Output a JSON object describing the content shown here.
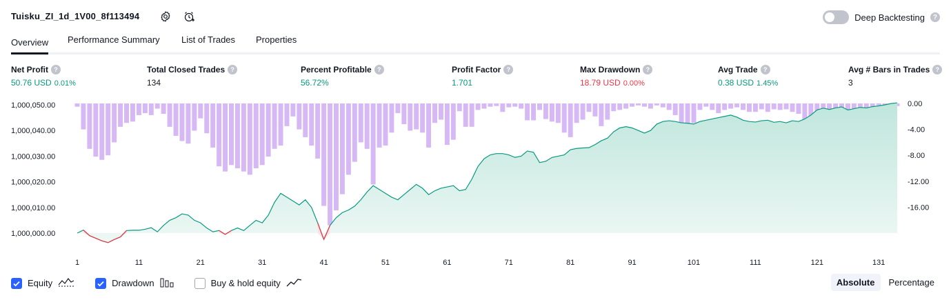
{
  "header": {
    "strategy_name": "Tuisku_ZI_1d_1V00_8f113494",
    "settings_icon": "gear-icon",
    "alert_icon": "alarm-clock-add-icon",
    "deep_backtesting_label": "Deep Backtesting",
    "deep_backtesting_on": false,
    "help_glyph": "?"
  },
  "tabs": [
    {
      "label": "Overview",
      "active": true
    },
    {
      "label": "Performance Summary",
      "active": false
    },
    {
      "label": "List of Trades",
      "active": false
    },
    {
      "label": "Properties",
      "active": false
    }
  ],
  "metrics": [
    {
      "label": "Net Profit",
      "value": "50.76 USD",
      "sub": "0.01%",
      "color": "#089981"
    },
    {
      "label": "Total Closed Trades",
      "value": "134",
      "sub": "",
      "color": "#131722"
    },
    {
      "label": "Percent Profitable",
      "value": "56.72%",
      "sub": "",
      "color": "#089981"
    },
    {
      "label": "Profit Factor",
      "value": "1.701",
      "sub": "",
      "color": "#089981"
    },
    {
      "label": "Max Drawdown",
      "value": "18.79 USD",
      "sub": "0.00%",
      "color": "#f23645"
    },
    {
      "label": "Avg Trade",
      "value": "0.38 USD",
      "sub": "1.45%",
      "color": "#089981"
    },
    {
      "label": "Avg # Bars in Trades",
      "value": "3",
      "sub": "",
      "color": "#131722"
    }
  ],
  "chart_data": {
    "type": "area",
    "x_ticks": [
      1,
      11,
      21,
      31,
      41,
      51,
      61,
      71,
      81,
      91,
      101,
      111,
      121,
      131
    ],
    "x_range": [
      1,
      134
    ],
    "left_axis": {
      "ticks": [
        "1,000,000.00",
        "1,000,010.00",
        "1,000,020.00",
        "1,000,030.00",
        "1,000,040.00",
        "1,000,050.00"
      ],
      "range": [
        1000000,
        1000050
      ]
    },
    "right_axis": {
      "ticks": [
        "0.00",
        "-4.00",
        "-8.00",
        "-12.00",
        "-16.00"
      ],
      "range": [
        -18.79,
        0
      ]
    },
    "series": [
      {
        "name": "Equity",
        "axis": "left",
        "points": [
          [
            1,
            1000000.0
          ],
          [
            2,
            1000001.2
          ],
          [
            3,
            999999.0
          ],
          [
            4,
            999998.0
          ],
          [
            5,
            999997.0
          ],
          [
            6,
            999996.3
          ],
          [
            7,
            999997.5
          ],
          [
            8,
            999998.5
          ],
          [
            9,
            1000001.0
          ],
          [
            10,
            1000001.1
          ],
          [
            11,
            1000001.1
          ],
          [
            12,
            1000001.5
          ],
          [
            13,
            1000002.1
          ],
          [
            14,
            1000000.5
          ],
          [
            15,
            1000003.0
          ],
          [
            16,
            1000005.0
          ],
          [
            17,
            1000006.0
          ],
          [
            18,
            1000007.5
          ],
          [
            19,
            1000007.0
          ],
          [
            20,
            1000005.0
          ],
          [
            21,
            1000004.0
          ],
          [
            22,
            1000002.0
          ],
          [
            23,
            1000000.5
          ],
          [
            24,
            1000001.0
          ],
          [
            25,
            999999.5
          ],
          [
            26,
            1000001.0
          ],
          [
            27,
            1000002.0
          ],
          [
            28,
            1000001.0
          ],
          [
            29,
            1000003.0
          ],
          [
            30,
            1000005.0
          ],
          [
            31,
            1000004.0
          ],
          [
            32,
            1000007.0
          ],
          [
            33,
            1000012.0
          ],
          [
            34,
            1000015.5
          ],
          [
            35,
            1000014.0
          ],
          [
            36,
            1000012.5
          ],
          [
            37,
            1000011.0
          ],
          [
            38,
            1000013.0
          ],
          [
            39,
            1000010.0
          ],
          [
            40,
            1000004.0
          ],
          [
            41,
            999997.5
          ],
          [
            42,
            1000003.0
          ],
          [
            43,
            1000006.0
          ],
          [
            44,
            1000008.0
          ],
          [
            45,
            1000009.0
          ],
          [
            46,
            1000010.5
          ],
          [
            47,
            1000013.0
          ],
          [
            48,
            1000016.0
          ],
          [
            49,
            1000018.5
          ],
          [
            50,
            1000017.0
          ],
          [
            51,
            1000015.5
          ],
          [
            52,
            1000014.0
          ],
          [
            53,
            1000013.0
          ],
          [
            54,
            1000015.0
          ],
          [
            55,
            1000017.0
          ],
          [
            56,
            1000019.0
          ],
          [
            57,
            1000017.5
          ],
          [
            58,
            1000015.0
          ],
          [
            59,
            1000016.5
          ],
          [
            60,
            1000017.5
          ],
          [
            61,
            1000018.0
          ],
          [
            62,
            1000018.5
          ],
          [
            63,
            1000016.5
          ],
          [
            64,
            1000017.0
          ],
          [
            65,
            1000021.0
          ],
          [
            66,
            1000026.0
          ],
          [
            67,
            1000029.0
          ],
          [
            68,
            1000030.5
          ],
          [
            69,
            1000031.0
          ],
          [
            70,
            1000031.0
          ],
          [
            71,
            1000030.5
          ],
          [
            72,
            1000029.5
          ],
          [
            73,
            1000030.0
          ],
          [
            74,
            1000032.0
          ],
          [
            75,
            1000031.5
          ],
          [
            76,
            1000027.5
          ],
          [
            77,
            1000028.0
          ],
          [
            78,
            1000029.5
          ],
          [
            79,
            1000030.0
          ],
          [
            80,
            1000030.5
          ],
          [
            81,
            1000032.5
          ],
          [
            82,
            1000033.0
          ],
          [
            83,
            1000033.2
          ],
          [
            84,
            1000033.3
          ],
          [
            85,
            1000034.5
          ],
          [
            86,
            1000036.0
          ],
          [
            87,
            1000037.0
          ],
          [
            88,
            1000039.5
          ],
          [
            89,
            1000041.0
          ],
          [
            90,
            1000041.5
          ],
          [
            91,
            1000041.0
          ],
          [
            92,
            1000040.0
          ],
          [
            93,
            1000039.0
          ],
          [
            94,
            1000040.0
          ],
          [
            95,
            1000042.5
          ],
          [
            96,
            1000043.5
          ],
          [
            97,
            1000043.8
          ],
          [
            98,
            1000043.5
          ],
          [
            99,
            1000043.0
          ],
          [
            100,
            1000042.8
          ],
          [
            101,
            1000042.5
          ],
          [
            102,
            1000043.5
          ],
          [
            103,
            1000044.0
          ],
          [
            104,
            1000044.5
          ],
          [
            105,
            1000045.0
          ],
          [
            106,
            1000045.5
          ],
          [
            107,
            1000046.0
          ],
          [
            108,
            1000045.2
          ],
          [
            109,
            1000044.0
          ],
          [
            110,
            1000043.5
          ],
          [
            111,
            1000043.3
          ],
          [
            112,
            1000043.8
          ],
          [
            113,
            1000044.0
          ],
          [
            114,
            1000043.2
          ],
          [
            115,
            1000043.5
          ],
          [
            116,
            1000043.0
          ],
          [
            117,
            1000043.8
          ],
          [
            118,
            1000043.5
          ],
          [
            119,
            1000044.5
          ],
          [
            120,
            1000046.0
          ],
          [
            121,
            1000048.0
          ],
          [
            122,
            1000048.7
          ],
          [
            123,
            1000048.2
          ],
          [
            124,
            1000048.8
          ],
          [
            125,
            1000049.2
          ],
          [
            126,
            1000048.0
          ],
          [
            127,
            1000048.5
          ],
          [
            128,
            1000049.0
          ],
          [
            129,
            1000048.8
          ],
          [
            130,
            1000049.3
          ],
          [
            131,
            1000049.6
          ],
          [
            132,
            1000050.0
          ],
          [
            133,
            1000050.5
          ],
          [
            134,
            1000050.76
          ]
        ]
      },
      {
        "name": "Drawdown",
        "axis": "right",
        "values": [
          -0.5,
          -4.0,
          -7.0,
          -8.2,
          -8.7,
          -8.0,
          -6.0,
          -3.6,
          -3.0,
          -2.8,
          -1.8,
          -1.5,
          -1.8,
          -0.8,
          -1.6,
          -3.6,
          -5.0,
          -5.8,
          -6.2,
          -4.2,
          -2.3,
          -4.6,
          -6.8,
          -9.7,
          -10.5,
          -9.5,
          -10.0,
          -10.5,
          -11.0,
          -10.0,
          -9.5,
          -8.2,
          -7.0,
          -6.5,
          -3.5,
          -2.0,
          -4.0,
          -5.2,
          -6.5,
          -8.5,
          -15.8,
          -18.79,
          -16.5,
          -14.0,
          -11.0,
          -9.0,
          -6.0,
          -7.0,
          -12.5,
          -6.8,
          -6.5,
          -4.5,
          -1.5,
          -3.2,
          -4.2,
          -4.0,
          -4.5,
          -6.8,
          -3.0,
          -2.5,
          -6.4,
          -5.6,
          -1.2,
          -3.6,
          -3.6,
          -1.0,
          -0.8,
          -0.5,
          -0.4,
          -1.3,
          -0.6,
          -0.5,
          -0.8,
          -2.6,
          -2.6,
          -1.0,
          -2.4,
          -2.8,
          -3.0,
          -4.5,
          -5.2,
          -3.0,
          -2.5,
          -1.3,
          -2.0,
          -3.5,
          -2.5,
          -1.2,
          -1.0,
          -0.8,
          -0.5,
          -0.3,
          -0.5,
          -0.8,
          -0.3,
          -0.6,
          -1.0,
          -1.8,
          -3.2,
          -3.6,
          -3.0,
          -1.0,
          -0.5,
          -1.0,
          -1.5,
          -1.0,
          -0.8,
          -0.6,
          -1.0,
          -1.3,
          -1.3,
          -0.9,
          -1.3,
          -0.9,
          -1.0,
          -0.9,
          -1.3,
          -1.6,
          -2.8,
          -3.4,
          -2.2,
          -2.0,
          -1.6,
          -3.6,
          -0.9,
          -1.2,
          -0.9,
          -0.8,
          -0.6,
          -0.5,
          -0.3,
          -1.2,
          -0.8,
          -0.4
        ]
      }
    ]
  },
  "legend": [
    {
      "label": "Equity",
      "checked": true,
      "icon": "equity-line-icon"
    },
    {
      "label": "Drawdown",
      "checked": true,
      "icon": "drawdown-bars-icon"
    },
    {
      "label": "Buy & hold equity",
      "checked": false,
      "icon": "buy-hold-line-icon"
    }
  ],
  "view_modes": [
    {
      "label": "Absolute",
      "active": true
    },
    {
      "label": "Percentage",
      "active": false
    }
  ],
  "colors": {
    "accent": "#2962ff",
    "profit": "#089981",
    "loss": "#f23645",
    "drawdown_bar": "#d6b8f5",
    "equity_area_top": "#bfe6dc",
    "equity_area_bottom": "#eef8f5"
  }
}
